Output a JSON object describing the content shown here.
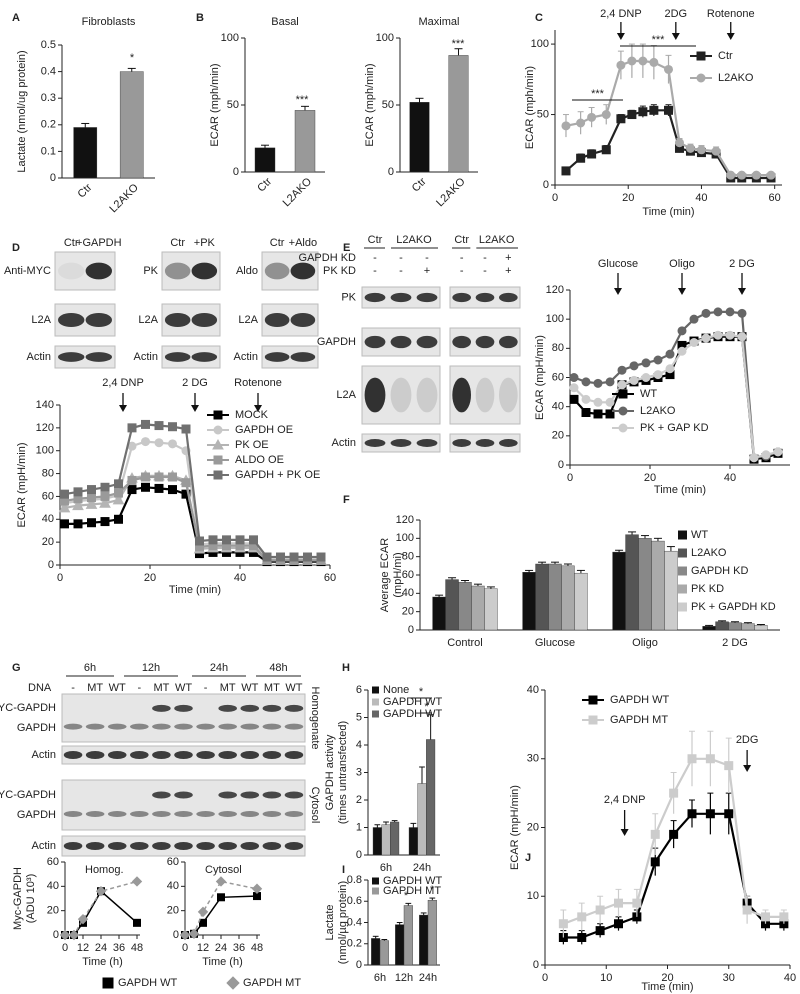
{
  "panel_letters": [
    "A",
    "B",
    "C",
    "D",
    "E",
    "F",
    "G",
    "H",
    "I",
    "J"
  ],
  "blots": {
    "D": {
      "lanes": [
        [
          "Ctr",
          "+GAPDH"
        ],
        [
          "Ctr",
          "+PK"
        ],
        [
          "Ctr",
          "+Aldo"
        ]
      ],
      "rows": [
        [
          "Anti-MYC",
          "L2A",
          "Actin"
        ],
        [
          "PK",
          "L2A",
          "Actin"
        ],
        [
          "Aldo",
          "L2A",
          "Actin"
        ]
      ]
    },
    "E": {
      "groups": [
        "Ctr",
        "L2AKO",
        "Ctr",
        "L2AKO"
      ],
      "conditions": [
        {
          "label": "GAPDH KD",
          "signs": [
            "-",
            "-",
            "-",
            "-",
            "-",
            "+"
          ]
        },
        {
          "label": "PK KD",
          "signs": [
            "-",
            "-",
            "+",
            "-",
            "-",
            "+"
          ]
        }
      ],
      "rows": [
        "PK",
        "GAPDH",
        "L2A",
        "Actin"
      ]
    },
    "G": {
      "times": [
        "6h",
        "12h",
        "24h",
        "48h"
      ],
      "dna_label": "DNA",
      "dna": [
        "-",
        "MT",
        "WT",
        "-",
        "MT",
        "WT",
        "-",
        "MT",
        "WT",
        "MT",
        "WT"
      ],
      "rows": [
        "MYC-GAPDH",
        "GAPDH",
        "Actin",
        "MYC-GAPDH",
        "GAPDH",
        "Actin"
      ],
      "fractions": [
        "Homogenate",
        "Cytosol"
      ]
    }
  },
  "chart_data": [
    {
      "type": "bar",
      "title": "Fibroblasts",
      "ylabel": "Lactate (nmol/ug protein)",
      "categories": [
        "Ctr",
        "L2AKO"
      ],
      "values": [
        0.19,
        0.4
      ],
      "errors": [
        0.015,
        0.012
      ],
      "colors": [
        "#111111",
        "#999999"
      ],
      "ylim": [
        0,
        0.5
      ],
      "yticks": [
        0,
        0.1,
        0.2,
        0.3,
        0.4,
        0.5
      ],
      "significance": [
        "*"
      ]
    },
    {
      "type": "bar",
      "title": "Basal",
      "ylabel": "ECAR (mph/min)",
      "categories": [
        "Ctr",
        "L2AKO"
      ],
      "values": [
        18,
        46
      ],
      "errors": [
        2,
        3
      ],
      "colors": [
        "#111111",
        "#999999"
      ],
      "ylim": [
        0,
        100
      ],
      "yticks": [
        0,
        50,
        100
      ],
      "significance": [
        "***"
      ]
    },
    {
      "type": "bar",
      "title": "Maximal",
      "ylabel": "ECAR (mph/min)",
      "categories": [
        "Ctr",
        "L2AKO"
      ],
      "values": [
        52,
        87
      ],
      "errors": [
        3,
        5
      ],
      "colors": [
        "#111111",
        "#999999"
      ],
      "ylim": [
        0,
        100
      ],
      "yticks": [
        0,
        50,
        100
      ],
      "significance": [
        "***"
      ]
    },
    {
      "type": "line",
      "xlabel": "Time (min)",
      "ylabel": "ECAR (mph/min)",
      "x": [
        3,
        7,
        10,
        14,
        18,
        21,
        24,
        27,
        31,
        34,
        37,
        40,
        44,
        48,
        51,
        55,
        59
      ],
      "series": [
        {
          "name": "Ctr",
          "color": "#222222",
          "marker": "square",
          "values": [
            10,
            19,
            22,
            25,
            47,
            50,
            52,
            53,
            53,
            26,
            24,
            23,
            22,
            5,
            5,
            5,
            5
          ],
          "errors": [
            2,
            3,
            3,
            3,
            3,
            3,
            4,
            4,
            4,
            3,
            3,
            3,
            3,
            1,
            1,
            1,
            1
          ]
        },
        {
          "name": "L2AKO",
          "color": "#aaaaaa",
          "marker": "circle",
          "values": [
            42,
            44,
            48,
            50,
            85,
            88,
            88,
            87,
            82,
            30,
            26,
            25,
            24,
            7,
            7,
            7,
            7
          ],
          "errors": [
            8,
            8,
            7,
            7,
            10,
            12,
            12,
            12,
            10,
            3,
            3,
            3,
            3,
            1,
            1,
            1,
            1
          ]
        }
      ],
      "xlim": [
        0,
        62
      ],
      "xticks": [
        0,
        20,
        40,
        60
      ],
      "ylim": [
        0,
        110
      ],
      "yticks": [
        0,
        50,
        100
      ],
      "annotations": [
        "2,4 DNP",
        "2DG",
        "Rotenone"
      ],
      "significance": [
        "***",
        "***"
      ]
    },
    {
      "type": "line",
      "xlabel": "Time (min)",
      "ylabel": "ECAR (mpH/min)",
      "x": [
        1,
        4,
        7,
        10,
        13,
        16,
        19,
        22,
        25,
        28,
        31,
        34,
        37,
        40,
        43,
        46,
        49,
        52,
        55,
        58
      ],
      "series": [
        {
          "name": "MOCK",
          "color": "#000000",
          "marker": "square",
          "values": [
            36,
            36,
            37,
            38,
            40,
            66,
            68,
            67,
            66,
            62,
            10,
            11,
            11,
            11,
            11,
            3,
            3,
            3,
            3,
            3
          ]
        },
        {
          "name": "GAPDH OE",
          "color": "#c8c8c8",
          "marker": "circle",
          "values": [
            54,
            56,
            57,
            58,
            61,
            104,
            108,
            107,
            106,
            100,
            18,
            19,
            19,
            19,
            19,
            5,
            5,
            5,
            5,
            5
          ]
        },
        {
          "name": "PK OE",
          "color": "#b4b4b4",
          "marker": "triangle",
          "values": [
            50,
            52,
            53,
            54,
            57,
            76,
            78,
            78,
            78,
            74,
            14,
            15,
            15,
            15,
            15,
            4,
            4,
            4,
            4,
            4
          ]
        },
        {
          "name": "ALDO OE",
          "color": "#9a9a9a",
          "marker": "square",
          "values": [
            56,
            58,
            59,
            60,
            63,
            74,
            77,
            77,
            77,
            72,
            16,
            17,
            17,
            17,
            17,
            4,
            4,
            4,
            4,
            4
          ]
        },
        {
          "name": "GAPDH + PK OE",
          "color": "#707070",
          "marker": "square",
          "values": [
            62,
            64,
            66,
            68,
            71,
            120,
            123,
            122,
            121,
            119,
            21,
            22,
            22,
            22,
            22,
            7,
            7,
            7,
            7,
            7
          ]
        }
      ],
      "xlim": [
        0,
        60
      ],
      "xticks": [
        0,
        20,
        40,
        60
      ],
      "ylim": [
        0,
        140
      ],
      "yticks": [
        0,
        20,
        40,
        60,
        80,
        100,
        120,
        140
      ],
      "annotations": [
        "2,4 DNP",
        "2 DG",
        "Rotenone"
      ]
    },
    {
      "type": "line",
      "xlabel": "Time (min)",
      "ylabel": "ECAR (mpH/min)",
      "x": [
        1,
        4,
        7,
        10,
        13,
        16,
        19,
        22,
        25,
        28,
        31,
        34,
        37,
        40,
        43,
        46,
        49,
        52
      ],
      "series": [
        {
          "name": "WT",
          "color": "#000000",
          "marker": "square",
          "values": [
            45,
            36,
            35,
            35,
            55,
            57,
            58,
            60,
            62,
            82,
            85,
            87,
            88,
            88,
            88,
            4,
            5,
            8
          ]
        },
        {
          "name": "L2AKO",
          "color": "#666666",
          "marker": "circle",
          "values": [
            60,
            57,
            56,
            57,
            65,
            68,
            70,
            72,
            76,
            92,
            100,
            104,
            105,
            105,
            104,
            5,
            6,
            9
          ]
        },
        {
          "name": "PK + GAP KD",
          "color": "#cccccc",
          "marker": "circle",
          "values": [
            53,
            45,
            43,
            43,
            55,
            58,
            60,
            62,
            66,
            78,
            84,
            87,
            89,
            89,
            88,
            5,
            7,
            9
          ]
        }
      ],
      "xlim": [
        0,
        55
      ],
      "xticks": [
        0,
        20,
        40
      ],
      "ylim": [
        0,
        120
      ],
      "yticks": [
        0,
        20,
        40,
        60,
        80,
        100,
        120
      ],
      "annotations": [
        "Glucose",
        "Oligo",
        "2 DG"
      ]
    },
    {
      "type": "bar",
      "ylabel": [
        "Average ECAR",
        "(mpH/mi)"
      ],
      "categories": [
        "Control",
        "Glucose",
        "Oligo",
        "2 DG"
      ],
      "series": [
        {
          "name": "WT",
          "color": "#111111",
          "values": [
            36,
            63,
            85,
            4
          ],
          "errors": [
            2,
            2,
            2,
            1
          ]
        },
        {
          "name": "L2AKO",
          "color": "#555555",
          "values": [
            55,
            72,
            104,
            9
          ],
          "errors": [
            2,
            2,
            3,
            1
          ]
        },
        {
          "name": "GAPDH KD",
          "color": "#888888",
          "values": [
            52,
            72,
            100,
            8
          ],
          "errors": [
            2,
            2,
            3,
            1
          ]
        },
        {
          "name": "PK  KD",
          "color": "#aaaaaa",
          "values": [
            48,
            70,
            97,
            7
          ],
          "errors": [
            2,
            2,
            3,
            1
          ]
        },
        {
          "name": "PK + GAPDH KD",
          "color": "#cccccc",
          "values": [
            45,
            62,
            86,
            5
          ],
          "errors": [
            2,
            3,
            5,
            1
          ]
        }
      ],
      "ylim": [
        0,
        120
      ],
      "yticks": [
        0,
        20,
        40,
        60,
        80,
        100,
        120
      ]
    },
    {
      "type": "line",
      "title": "Homog.",
      "xlabel": "Time (h)",
      "ylabel": [
        "Myc-GAPDH",
        "(ADU 10³)"
      ],
      "x": [
        0,
        6,
        12,
        24,
        48
      ],
      "series": [
        {
          "name": "GAPDH WT",
          "color": "#000000",
          "marker": "square",
          "values": [
            0,
            0,
            10,
            36,
            10
          ]
        },
        {
          "name": "GAPDH MT",
          "color": "#999999",
          "marker": "diamond",
          "dash": true,
          "values": [
            0,
            0,
            13,
            36,
            44
          ]
        }
      ],
      "xlim": [
        0,
        50
      ],
      "xticks": [
        0,
        12,
        24,
        36,
        48
      ],
      "ylim": [
        0,
        60
      ],
      "yticks": [
        0,
        20,
        40,
        60
      ]
    },
    {
      "type": "line",
      "title": "Cytosol",
      "xlabel": "Time (h)",
      "x": [
        0,
        6,
        12,
        24,
        48
      ],
      "series": [
        {
          "name": "GAPDH WT",
          "color": "#000000",
          "marker": "square",
          "values": [
            0,
            1,
            10,
            31,
            32
          ]
        },
        {
          "name": "GAPDH MT",
          "color": "#999999",
          "marker": "diamond",
          "dash": true,
          "values": [
            0,
            1,
            19,
            44,
            38
          ]
        }
      ],
      "xlim": [
        0,
        50
      ],
      "xticks": [
        0,
        12,
        24,
        36,
        48
      ],
      "ylim": [
        0,
        60
      ],
      "yticks": [
        0,
        20,
        40,
        60
      ]
    },
    {
      "type": "bar",
      "ylabel": [
        "GAPDH activity",
        "(times untransfected)"
      ],
      "categories": [
        "6h",
        "24h"
      ],
      "series": [
        {
          "name": "None",
          "color": "#111111",
          "values": [
            1,
            1
          ],
          "errors": [
            0.1,
            0.15
          ]
        },
        {
          "name": "GAPDH WT",
          "color": "#bbbbbb",
          "values": [
            1.1,
            2.6
          ],
          "errors": [
            0.1,
            0.6
          ]
        },
        {
          "name": "GAPDH WT",
          "color": "#666666",
          "values": [
            1.2,
            4.2
          ],
          "errors": [
            0.05,
            0.9
          ]
        }
      ],
      "ylim": [
        0,
        6
      ],
      "yticks": [
        0,
        1,
        2,
        3,
        4,
        5,
        6
      ],
      "significance": [
        "*",
        "*"
      ]
    },
    {
      "type": "bar",
      "ylabel": [
        "Lactate",
        "(nmol/µg protein)"
      ],
      "categories": [
        "6h",
        "12h",
        "24h"
      ],
      "series": [
        {
          "name": "GAPDH WT",
          "color": "#111111",
          "values": [
            0.25,
            0.38,
            0.47
          ],
          "errors": [
            0.02,
            0.02,
            0.02
          ]
        },
        {
          "name": "GAPDH MT",
          "color": "#999999",
          "values": [
            0.23,
            0.56,
            0.61
          ],
          "errors": [
            0.01,
            0.02,
            0.02
          ]
        }
      ],
      "ylim": [
        0,
        0.8
      ],
      "yticks": [
        0,
        0.2,
        0.4,
        0.6,
        0.8
      ],
      "significance": [
        "*",
        "*"
      ]
    },
    {
      "type": "line",
      "xlabel": "Time (min)",
      "ylabel": "ECAR (mpH/min)",
      "x": [
        3,
        6,
        9,
        12,
        15,
        18,
        21,
        24,
        27,
        30,
        33,
        36,
        39
      ],
      "series": [
        {
          "name": "GAPDH WT",
          "color": "#000000",
          "marker": "square",
          "values": [
            4,
            4,
            5,
            6,
            7,
            15,
            19,
            22,
            22,
            22,
            9,
            6,
            6
          ],
          "errors": [
            1,
            1,
            1,
            1,
            1,
            2,
            2,
            2,
            3,
            3,
            1,
            1,
            1
          ]
        },
        {
          "name": "GAPDH MT",
          "color": "#cccccc",
          "marker": "square",
          "values": [
            6,
            7,
            8,
            9,
            9,
            19,
            25,
            30,
            30,
            29,
            8,
            7,
            7
          ],
          "errors": [
            2,
            2,
            2,
            2,
            2,
            3,
            3,
            4,
            4,
            4,
            2,
            1,
            1
          ]
        }
      ],
      "xlim": [
        0,
        40
      ],
      "xticks": [
        0,
        10,
        20,
        30,
        40
      ],
      "ylim": [
        0,
        40
      ],
      "yticks": [
        0,
        10,
        20,
        30,
        40
      ],
      "annotations": [
        "2,4 DNP",
        "2DG"
      ]
    }
  ]
}
